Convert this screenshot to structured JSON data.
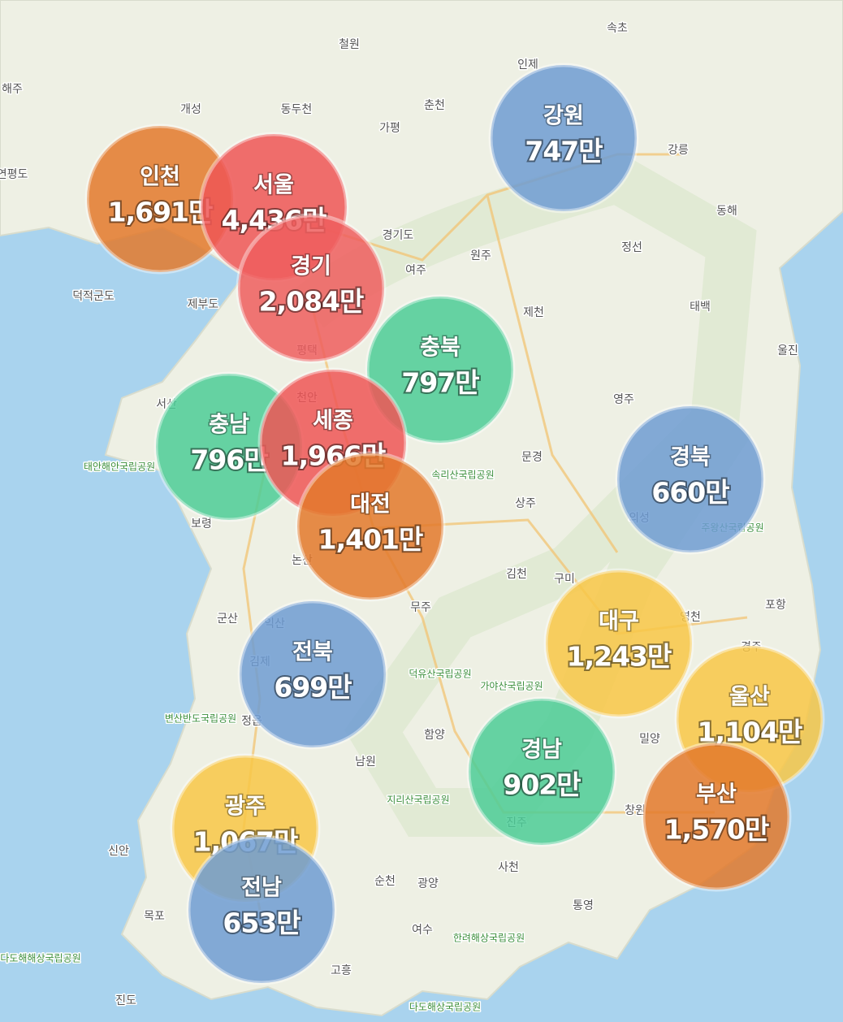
{
  "regions": [
    {
      "name": "인천",
      "value": 1691,
      "value_label": "1,691만",
      "color": "#e3792b"
    },
    {
      "name": "서울",
      "value": 4436,
      "value_label": "4,436만",
      "color": "#ef5656"
    },
    {
      "name": "경기",
      "value": 2084,
      "value_label": "2,084만",
      "color": "#ef5e5e"
    },
    {
      "name": "강원",
      "value": 747,
      "value_label": "747만",
      "color": "#6f9cd2"
    },
    {
      "name": "충북",
      "value": 797,
      "value_label": "797만",
      "color": "#4ccc96"
    },
    {
      "name": "충남",
      "value": 796,
      "value_label": "796만",
      "color": "#4ccc96"
    },
    {
      "name": "세종",
      "value": 1966,
      "value_label": "1,966만",
      "color": "#ef5656"
    },
    {
      "name": "대전",
      "value": 1401,
      "value_label": "1,401만",
      "color": "#e3792b"
    },
    {
      "name": "경북",
      "value": 660,
      "value_label": "660만",
      "color": "#6f9cd2"
    },
    {
      "name": "대구",
      "value": 1243,
      "value_label": "1,243만",
      "color": "#f8c747"
    },
    {
      "name": "울산",
      "value": 1104,
      "value_label": "1,104만",
      "color": "#f8c747"
    },
    {
      "name": "부산",
      "value": 1570,
      "value_label": "1,570만",
      "color": "#e3792b"
    },
    {
      "name": "경남",
      "value": 902,
      "value_label": "902만",
      "color": "#4ccc96"
    },
    {
      "name": "전북",
      "value": 699,
      "value_label": "699만",
      "color": "#6f9cd2"
    },
    {
      "name": "광주",
      "value": 1067,
      "value_label": "1,067만",
      "color": "#f8c747"
    },
    {
      "name": "전남",
      "value": 653,
      "value_label": "653만",
      "color": "#6f9cd2"
    }
  ],
  "places": [
    "철원",
    "인제",
    "속초",
    "개성",
    "동두천",
    "춘천",
    "가평",
    "강릉",
    "해주",
    "연평도",
    "동해",
    "경기도",
    "여주",
    "원주",
    "정선",
    "덕적군도",
    "제부도",
    "제천",
    "태백",
    "울진",
    "평택",
    "천안",
    "서산",
    "영주",
    "문경",
    "태안해안국립공원",
    "속리산국립공원",
    "상주",
    "보령",
    "의성",
    "주왕산국립공원",
    "논산",
    "김천",
    "구미",
    "포항",
    "무주",
    "군산",
    "영천",
    "익산",
    "김제",
    "덕유산국립공원",
    "가야산국립공원",
    "경주",
    "변산반도국립공원",
    "정읍",
    "함양",
    "밀양",
    "남원",
    "지리산국립공원",
    "창원",
    "신안",
    "진주",
    "사천",
    "순천",
    "광양",
    "목포",
    "통영",
    "여수",
    "한려해상국립공원",
    "다도해해상국립공원",
    "고흥",
    "진도",
    "다도해상국립공원"
  ]
}
